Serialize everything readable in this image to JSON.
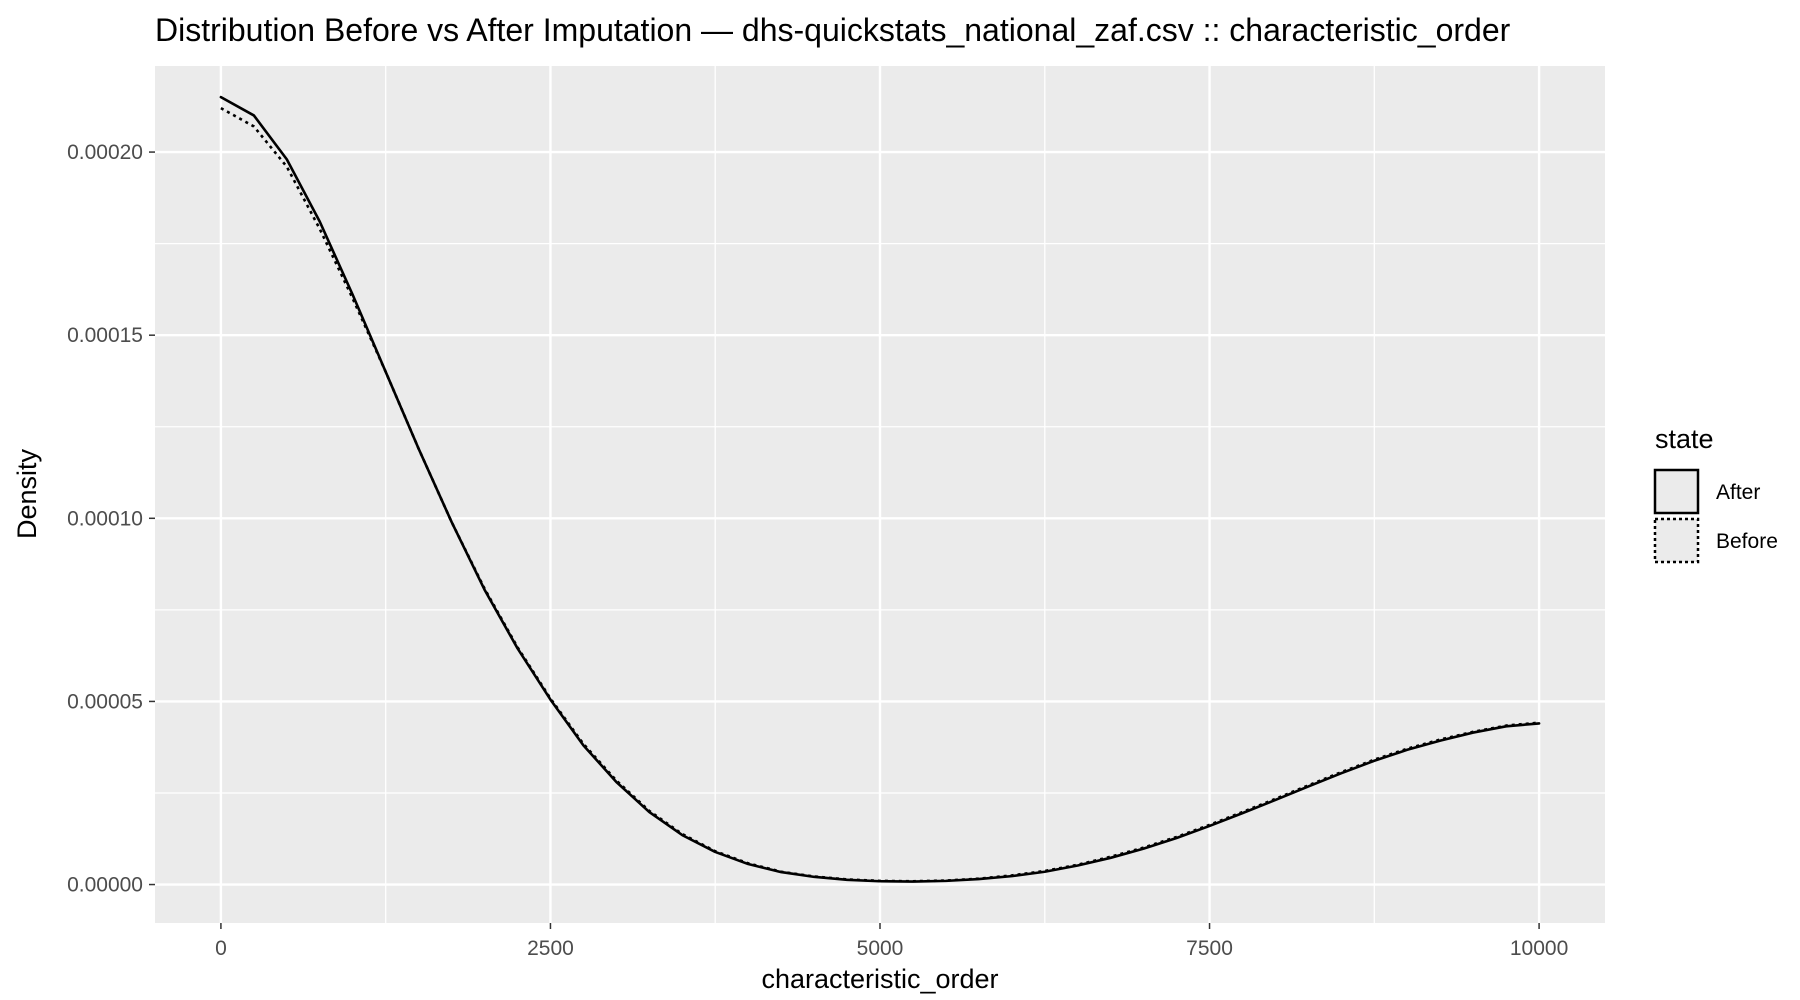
{
  "chart_data": {
    "type": "line",
    "title": "Distribution Before vs After Imputation — dhs-quickstats_national_zaf.csv :: characteristic_order",
    "xlabel": "characteristic_order",
    "ylabel": "Density",
    "xlim": [
      -500,
      10500
    ],
    "ylim": [
      -1.05e-05,
      0.0002235
    ],
    "x_ticks": [
      0,
      2500,
      5000,
      7500,
      10000
    ],
    "x_tick_labels": [
      "0",
      "2500",
      "5000",
      "7500",
      "10000"
    ],
    "y_ticks": [
      0,
      5e-05,
      0.0001,
      0.00015,
      0.0002
    ],
    "y_tick_labels": [
      "0.00000",
      "0.00005",
      "0.00010",
      "0.00015",
      "0.00020"
    ],
    "grid": true,
    "panel_background": "#ebebeb",
    "legend": {
      "title": "state",
      "position": "right"
    },
    "series": [
      {
        "name": "After",
        "linetype": "solid",
        "color": "#000000",
        "x": [
          0,
          250,
          500,
          750,
          1000,
          1250,
          1500,
          1750,
          2000,
          2250,
          2500,
          2750,
          3000,
          3250,
          3500,
          3750,
          4000,
          4250,
          4500,
          4750,
          5000,
          5250,
          5500,
          5750,
          6000,
          6250,
          6500,
          6750,
          7000,
          7250,
          7500,
          7750,
          8000,
          8250,
          8500,
          8750,
          9000,
          9250,
          9500,
          9750,
          10000
        ],
        "values": [
          0.000215,
          0.00021,
          0.000198,
          0.000181,
          0.000161,
          0.00014,
          0.000119,
          9.9e-05,
          8.05e-05,
          6.45e-05,
          5.05e-05,
          3.8e-05,
          2.8e-05,
          1.98e-05,
          1.35e-05,
          8.9e-06,
          5.6e-06,
          3.4e-06,
          2.1e-06,
          1.3e-06,
          9e-07,
          8e-07,
          1e-06,
          1.5e-06,
          2.3e-06,
          3.5e-06,
          5.2e-06,
          7.3e-06,
          9.8e-06,
          1.27e-05,
          1.6e-05,
          1.95e-05,
          2.31e-05,
          2.68e-05,
          3.04e-05,
          3.38e-05,
          3.68e-05,
          3.93e-05,
          4.15e-05,
          4.32e-05,
          4.4e-05
        ]
      },
      {
        "name": "Before",
        "linetype": "dotted",
        "color": "#000000",
        "x": [
          0,
          250,
          500,
          750,
          1000,
          1250,
          1500,
          1750,
          2000,
          2250,
          2500,
          2750,
          3000,
          3250,
          3500,
          3750,
          4000,
          4250,
          4500,
          4750,
          5000,
          5250,
          5500,
          5750,
          6000,
          6250,
          6500,
          6750,
          7000,
          7250,
          7500,
          7750,
          8000,
          8250,
          8500,
          8750,
          9000,
          9250,
          9500,
          9750,
          10000
        ],
        "values": [
          0.000212,
          0.000207,
          0.000196,
          0.000179,
          0.00016,
          0.00014,
          0.000119,
          9.9e-05,
          8.08e-05,
          6.48e-05,
          5.08e-05,
          3.84e-05,
          2.84e-05,
          2.01e-05,
          1.38e-05,
          9.1e-06,
          5.8e-06,
          3.5e-06,
          2.2e-06,
          1.4e-06,
          1e-06,
          9e-07,
          1.1e-06,
          1.6e-06,
          2.5e-06,
          3.7e-06,
          5.4e-06,
          7.6e-06,
          1.01e-05,
          1.3e-05,
          1.63e-05,
          1.98e-05,
          2.34e-05,
          2.71e-05,
          3.07e-05,
          3.41e-05,
          3.71e-05,
          3.96e-05,
          4.17e-05,
          4.34e-05,
          4.42e-05
        ]
      }
    ]
  }
}
